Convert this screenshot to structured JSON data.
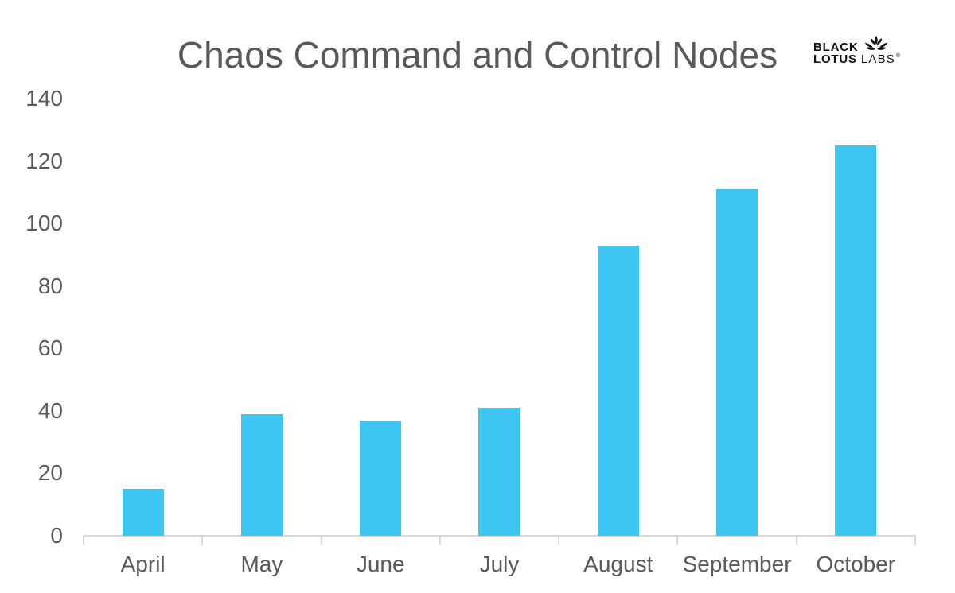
{
  "colors": {
    "background": "#FFFFFF",
    "bar": "#3DC6F2",
    "axis": "#D9D9D9",
    "tick_text": "#595959",
    "title_text": "#595959",
    "logo": "#111111"
  },
  "branding": {
    "word_top": "BLACK",
    "word_bottom_bold": "LOTUS",
    "word_bottom_light": "LABS",
    "trademark": "®",
    "icon": "lotus-icon"
  },
  "chart_data": {
    "type": "bar",
    "title": "Chaos Command and Control Nodes",
    "categories": [
      "April",
      "May",
      "June",
      "July",
      "August",
      "September",
      "October"
    ],
    "values": [
      15,
      39,
      37,
      41,
      93,
      111,
      125
    ],
    "xlabel": "",
    "ylabel": "",
    "ylim": [
      0,
      140
    ],
    "yticks": [
      0,
      20,
      40,
      60,
      80,
      100,
      120,
      140
    ],
    "grid": false,
    "legend_position": "none",
    "bar_color": "#3DC6F2"
  }
}
